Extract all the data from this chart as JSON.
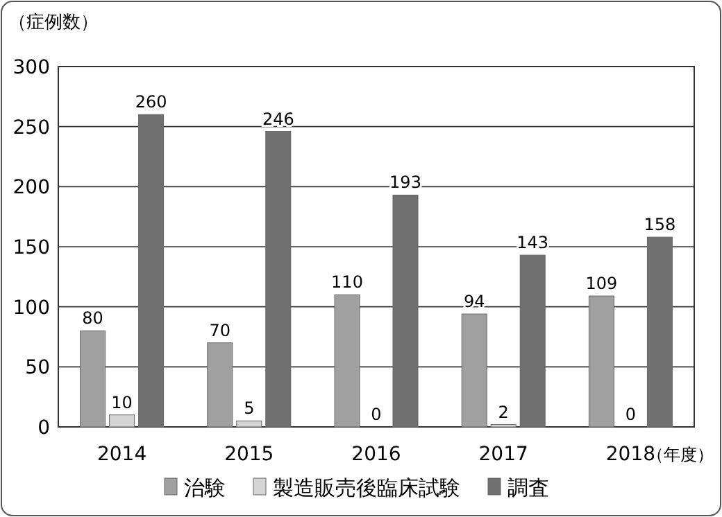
{
  "chart_data": {
    "type": "bar",
    "ylabel": "（症例数）",
    "xlabel": "（年度）",
    "categories": [
      "2014",
      "2015",
      "2016",
      "2017",
      "2018"
    ],
    "series": [
      {
        "name": "治験",
        "color": "#a0a0a0",
        "values": [
          80,
          70,
          110,
          94,
          109
        ]
      },
      {
        "name": "製造販売後臨床試験",
        "color": "#d4d4d4",
        "values": [
          10,
          5,
          0,
          2,
          0
        ]
      },
      {
        "name": "調査",
        "color": "#707070",
        "values": [
          260,
          246,
          193,
          143,
          158
        ]
      }
    ],
    "ylim": [
      0,
      300
    ],
    "yticks": [
      0,
      50,
      100,
      150,
      200,
      250,
      300
    ],
    "grid": "y",
    "legend": "bottom",
    "data_labels": true
  }
}
